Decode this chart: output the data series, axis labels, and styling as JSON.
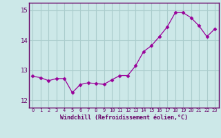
{
  "x": [
    0,
    1,
    2,
    3,
    4,
    5,
    6,
    7,
    8,
    9,
    10,
    11,
    12,
    13,
    14,
    15,
    16,
    17,
    18,
    19,
    20,
    21,
    22,
    23
  ],
  "y": [
    12.8,
    12.75,
    12.65,
    12.72,
    12.72,
    12.25,
    12.52,
    12.58,
    12.55,
    12.53,
    12.68,
    12.82,
    12.82,
    13.15,
    13.62,
    13.82,
    14.12,
    14.45,
    14.92,
    14.92,
    14.75,
    14.48,
    14.12,
    14.38
  ],
  "line_color": "#990099",
  "marker": "D",
  "marker_size": 2.5,
  "bg_color": "#cce8e8",
  "grid_color": "#aacccc",
  "xlabel": "Windchill (Refroidissement éolien,°C)",
  "xlabel_color": "#660066",
  "tick_color": "#660066",
  "spine_color": "#660066",
  "ylim": [
    11.75,
    15.25
  ],
  "yticks": [
    12,
    13,
    14,
    15
  ],
  "xlim": [
    -0.5,
    23.5
  ],
  "xticks": [
    0,
    1,
    2,
    3,
    4,
    5,
    6,
    7,
    8,
    9,
    10,
    11,
    12,
    13,
    14,
    15,
    16,
    17,
    18,
    19,
    20,
    21,
    22,
    23
  ]
}
